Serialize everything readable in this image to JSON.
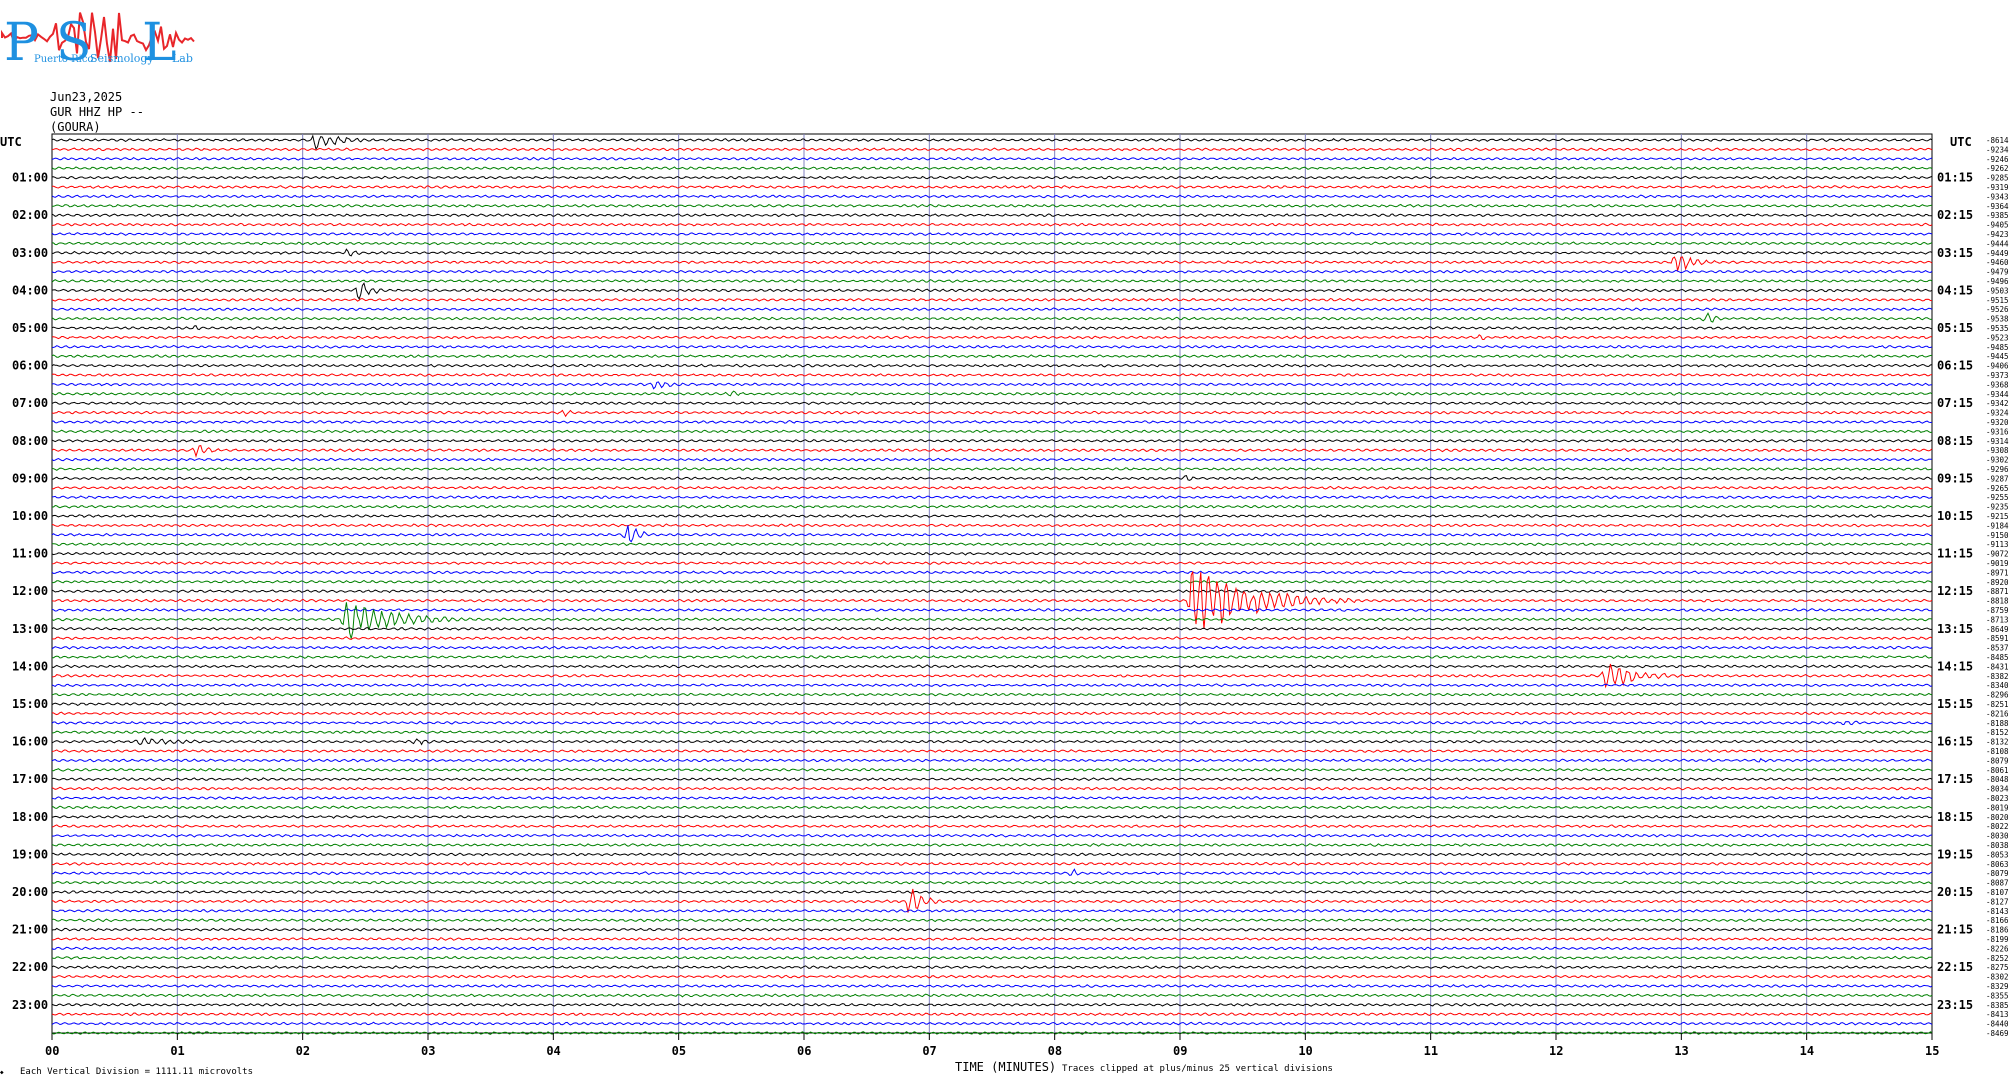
{
  "logo": {
    "letters": [
      "P",
      "S",
      "L"
    ],
    "words": [
      "Puerto Rico",
      "Seismology",
      "Lab"
    ],
    "color": "#1e90e0",
    "wave_color": "#e8262a"
  },
  "header": {
    "date": "Jun23,2025",
    "station": "GUR HHZ HP --",
    "location": "(GOURA)"
  },
  "footer": {
    "division_note": "Each Vertical Division = 1111.11 microvolts",
    "xlabel": "TIME (MINUTES)",
    "clip_note": "Traces clipped at plus/minus 25 vertical divisions"
  },
  "colors": {
    "trace_cycle": [
      "#000000",
      "#ff0000",
      "#0000ff",
      "#008000"
    ],
    "gridline": "#8080c0"
  },
  "chart_data": {
    "type": "line",
    "title": "",
    "xlabel": "TIME (MINUTES)",
    "ylabel": "",
    "xlim": [
      0,
      15
    ],
    "x_ticks": [
      "00",
      "01",
      "02",
      "03",
      "04",
      "05",
      "06",
      "07",
      "08",
      "09",
      "10",
      "11",
      "12",
      "13",
      "14",
      "15"
    ],
    "left_label_header": "UTC",
    "right_label_header": "UTC",
    "rows_per_hour": 4,
    "row_count": 96,
    "hour_labels_left": [
      "01:00",
      "02:00",
      "03:00",
      "04:00",
      "05:00",
      "06:00",
      "07:00",
      "08:00",
      "09:00",
      "10:00",
      "11:00",
      "12:00",
      "13:00",
      "14:00",
      "15:00",
      "16:00",
      "17:00",
      "18:00",
      "19:00",
      "20:00",
      "21:00",
      "22:00",
      "23:00"
    ],
    "hour_labels_right": [
      "01:15",
      "02:15",
      "03:15",
      "04:15",
      "05:15",
      "06:15",
      "07:15",
      "08:15",
      "09:15",
      "10:15",
      "11:15",
      "12:15",
      "13:15",
      "14:15",
      "15:15",
      "16:15",
      "17:15",
      "18:15",
      "19:15",
      "20:15",
      "21:15",
      "22:15",
      "23:15"
    ],
    "offsets": [
      "-8614",
      "-9234",
      "-9246",
      "-9262",
      "-9285",
      "-9319",
      "-9343",
      "-9364",
      "-9385",
      "-9405",
      "-9423",
      "-9444",
      "-9449",
      "-9460",
      "-9479",
      "-9496",
      "-9503",
      "-9515",
      "-9526",
      "-9538",
      "-9535",
      "-9523",
      "-9485",
      "-9445",
      "-9406",
      "-9373",
      "-9368",
      "-9344",
      "-9342",
      "-9324",
      "-9320",
      "-9316",
      "-9314",
      "-9308",
      "-9302",
      "-9296",
      "-9287",
      "-9265",
      "-9255",
      "-9235",
      "-9215",
      "-9184",
      "-9150",
      "-9113",
      "-9072",
      "-9019",
      "-8971",
      "-8920",
      "-8871",
      "-8818",
      "-8759",
      "-8713",
      "-8649",
      "-8591",
      "-8537",
      "-8485",
      "-8431",
      "-8382",
      "-8340",
      "-8296",
      "-8251",
      "-8216",
      "-8188",
      "-8152",
      "-8132",
      "-8108",
      "-8079",
      "-8061",
      "-8048",
      "-8034",
      "-8023",
      "-8019",
      "-8020",
      "-8022",
      "-8030",
      "-8038",
      "-8053",
      "-8063",
      "-8079",
      "-8087",
      "-8107",
      "-8127",
      "-8143",
      "-8166",
      "-8186",
      "-8199",
      "-8226",
      "-8252",
      "-8275",
      "-8302",
      "-8329",
      "-8355",
      "-8385",
      "-8413",
      "-8440",
      "-8469"
    ],
    "events": [
      {
        "row": 0,
        "minute": 2.1,
        "amplitude": 10,
        "duration": 0.6
      },
      {
        "row": 12,
        "minute": 2.35,
        "amplitude": 4,
        "duration": 0.3
      },
      {
        "row": 13,
        "minute": 12.95,
        "amplitude": 9,
        "duration": 0.5
      },
      {
        "row": 16,
        "minute": 2.45,
        "amplitude": 10,
        "duration": 0.3
      },
      {
        "row": 19,
        "minute": 13.2,
        "amplitude": 8,
        "duration": 0.2
      },
      {
        "row": 20,
        "minute": 1.15,
        "amplitude": 3,
        "duration": 0.2
      },
      {
        "row": 21,
        "minute": 11.4,
        "amplitude": 4,
        "duration": 0.1
      },
      {
        "row": 26,
        "minute": 4.8,
        "amplitude": 4,
        "duration": 0.5
      },
      {
        "row": 27,
        "minute": 5.4,
        "amplitude": 3,
        "duration": 0.4
      },
      {
        "row": 29,
        "minute": 4.1,
        "amplitude": 5,
        "duration": 0.1
      },
      {
        "row": 33,
        "minute": 1.15,
        "amplitude": 8,
        "duration": 0.3
      },
      {
        "row": 36,
        "minute": 9.05,
        "amplitude": 4,
        "duration": 0.2
      },
      {
        "row": 42,
        "minute": 4.6,
        "amplitude": 15,
        "duration": 0.2
      },
      {
        "row": 49,
        "minute": 9.1,
        "amplitude": 34,
        "duration": 1.3
      },
      {
        "row": 51,
        "minute": 2.35,
        "amplitude": 22,
        "duration": 1.0
      },
      {
        "row": 57,
        "minute": 12.4,
        "amplitude": 12,
        "duration": 0.8
      },
      {
        "row": 62,
        "minute": 14.3,
        "amplitude": 4,
        "duration": 0.3
      },
      {
        "row": 64,
        "minute": 0.7,
        "amplitude": 4,
        "duration": 1.2
      },
      {
        "row": 64,
        "minute": 2.9,
        "amplitude": 4,
        "duration": 0.3
      },
      {
        "row": 66,
        "minute": 13.6,
        "amplitude": 3,
        "duration": 0.3
      },
      {
        "row": 78,
        "minute": 8.15,
        "amplitude": 6,
        "duration": 0.1
      },
      {
        "row": 81,
        "minute": 6.85,
        "amplitude": 15,
        "duration": 0.3
      }
    ]
  }
}
